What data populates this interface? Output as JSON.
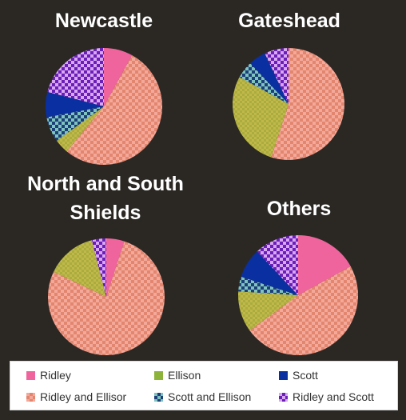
{
  "chart_data": [
    {
      "type": "pie",
      "title": "Newcastle",
      "slices": [
        {
          "label": "Ridley",
          "value": 8
        },
        {
          "label": "Ridley and Ellisor",
          "value": 53
        },
        {
          "label": "Ellison",
          "value": 4
        },
        {
          "label": "Scott and Ellison",
          "value": 7
        },
        {
          "label": "Scott",
          "value": 7
        },
        {
          "label": "Ridley and Scott",
          "value": 21
        }
      ]
    },
    {
      "type": "pie",
      "title": "Gateshead",
      "slices": [
        {
          "label": "Ridley and Ellisor",
          "value": 55
        },
        {
          "label": "Ellison",
          "value": 28
        },
        {
          "label": "Scott and Ellison",
          "value": 5
        },
        {
          "label": "Scott",
          "value": 5
        },
        {
          "label": "Ridley and Scott",
          "value": 7
        }
      ]
    },
    {
      "type": "pie",
      "title": "North and South Shields",
      "slices": [
        {
          "label": "Ridley",
          "value": 5
        },
        {
          "label": "Ridley and Ellisor",
          "value": 77
        },
        {
          "label": "Ellison",
          "value": 14
        },
        {
          "label": "Ridley and Scott",
          "value": 4
        }
      ]
    },
    {
      "type": "pie",
      "title": "Others",
      "slices": [
        {
          "label": "Ridley",
          "value": 17
        },
        {
          "label": "Ridley and Ellisor",
          "value": 48
        },
        {
          "label": "Ellison",
          "value": 11
        },
        {
          "label": "Scott and Ellison",
          "value": 4
        },
        {
          "label": "Scott",
          "value": 8
        },
        {
          "label": "Ridley and Scott",
          "value": 12
        }
      ]
    }
  ],
  "legend": [
    {
      "label": "Ridley",
      "color": "#f0649e",
      "pattern": "solid"
    },
    {
      "label": "Ellison",
      "color": "#8db33a",
      "pattern": "solid"
    },
    {
      "label": "Scott",
      "color": "#0a2fa0",
      "pattern": "solid"
    },
    {
      "label": "Ridley and Ellisor",
      "color": "#e68c78",
      "pattern": "checker"
    },
    {
      "label": "Scott and Ellison",
      "color": "#1f4d6a",
      "pattern": "checker"
    },
    {
      "label": "Ridley and Scott",
      "color": "#9b40d8",
      "pattern": "checker"
    }
  ]
}
